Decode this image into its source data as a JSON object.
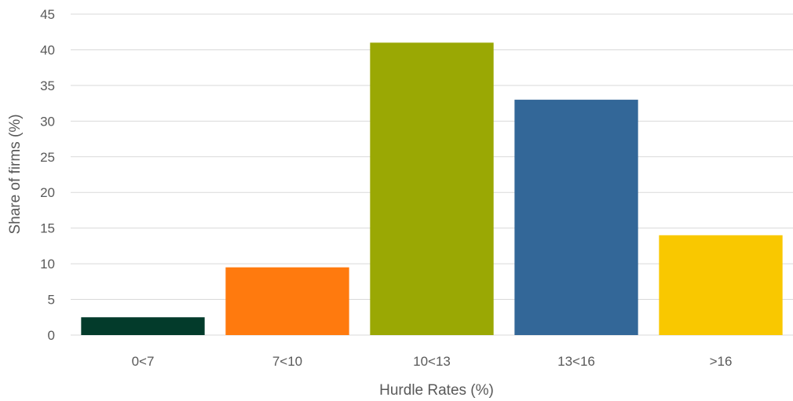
{
  "chart_data": {
    "type": "bar",
    "categories": [
      "0<7",
      "7<10",
      "10<13",
      "13<16",
      ">16"
    ],
    "values": [
      2.5,
      9.5,
      41,
      33,
      14
    ],
    "colors": [
      "#033b2b",
      "#ff7a0e",
      "#9aa804",
      "#336798",
      "#f9c800"
    ],
    "xlabel": "Hurdle Rates (%)",
    "ylabel": "Share of firms (%)",
    "ylim": [
      0,
      45
    ],
    "yticks": [
      0,
      5,
      10,
      15,
      20,
      25,
      30,
      35,
      40,
      45
    ],
    "ytick_labels": [
      "0",
      "5",
      "10",
      "15",
      "20",
      "25",
      "30",
      "35",
      "40",
      "45"
    ],
    "grid": true,
    "legend": "none"
  }
}
